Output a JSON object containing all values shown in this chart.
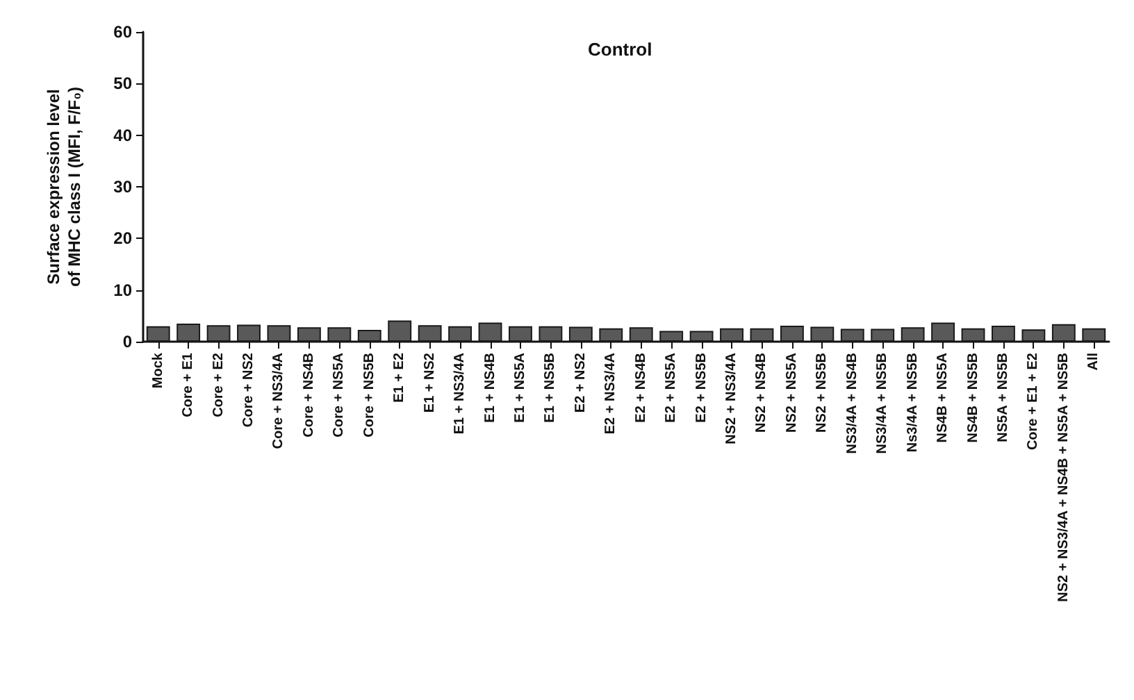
{
  "chart_data": {
    "type": "bar",
    "title": "Control",
    "ylabel": "Surface expression level of MHC class I (MFI, F/F₀)",
    "categories": [
      "Mock",
      "Core + E1",
      "Core + E2",
      "Core + NS2",
      "Core + NS3/4A",
      "Core + NS4B",
      "Core + NS5A",
      "Core + NS5B",
      "E1 + E2",
      "E1 + NS2",
      "E1 + NS3/4A",
      "E1 + NS4B",
      "E1 + NS5A",
      "E1 + NS5B",
      "E2 + NS2",
      "E2 + NS3/4A",
      "E2 + NS4B",
      "E2 + NS5A",
      "E2 + NS5B",
      "NS2 + NS3/4A",
      "NS2 + NS4B",
      "NS2 + NS5A",
      "NS2 + NS5B",
      "NS3/4A + NS4B",
      "NS3/4A + NS5B",
      "Ns3/4A + NS5B",
      "NS4B + NS5A",
      "NS4B + NS5B",
      "NS5A + NS5B",
      "Core + E1 + E2",
      "NS2 + NS3/4A + NS4B + NS5A + NS5B",
      "All"
    ],
    "values": [
      3.0,
      3.5,
      3.2,
      3.3,
      3.2,
      2.8,
      2.8,
      2.3,
      4.1,
      3.2,
      3.0,
      3.7,
      3.0,
      3.0,
      2.9,
      2.6,
      2.8,
      2.1,
      2.1,
      2.6,
      2.6,
      3.1,
      2.9,
      2.5,
      2.5,
      2.8,
      3.7,
      2.6,
      3.1,
      2.4,
      3.4,
      2.6
    ],
    "color": "#595959",
    "ylim": [
      0,
      60
    ],
    "yticks": [
      0,
      10,
      20,
      30,
      40,
      50,
      60
    ],
    "grid": false
  }
}
